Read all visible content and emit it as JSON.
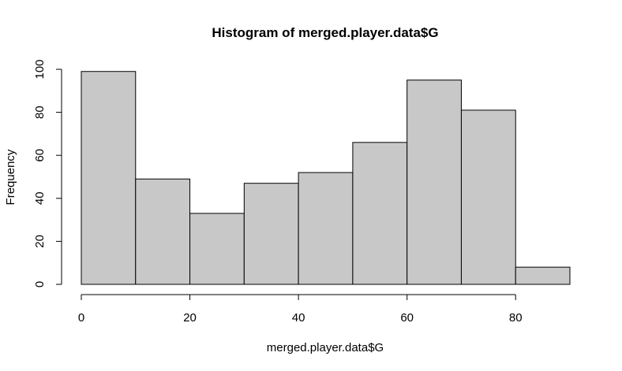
{
  "chart_data": {
    "type": "bar",
    "title": "Histogram of merged.player.data$G",
    "xlabel": "merged.player.data$G",
    "ylabel": "Frequency",
    "bins": [
      {
        "x0": 0,
        "x1": 10,
        "count": 99
      },
      {
        "x0": 10,
        "x1": 20,
        "count": 49
      },
      {
        "x0": 20,
        "x1": 30,
        "count": 33
      },
      {
        "x0": 30,
        "x1": 40,
        "count": 47
      },
      {
        "x0": 40,
        "x1": 50,
        "count": 52
      },
      {
        "x0": 50,
        "x1": 60,
        "count": 66
      },
      {
        "x0": 60,
        "x1": 70,
        "count": 95
      },
      {
        "x0": 70,
        "x1": 80,
        "count": 81
      },
      {
        "x0": 80,
        "x1": 90,
        "count": 8
      }
    ],
    "xlim": [
      0,
      90
    ],
    "ylim": [
      0,
      100
    ],
    "xticks": [
      0,
      20,
      40,
      60,
      80
    ],
    "yticks": [
      0,
      20,
      40,
      60,
      80,
      100
    ],
    "bar_color": "#c8c8c8",
    "grid": false,
    "legend": "none"
  }
}
